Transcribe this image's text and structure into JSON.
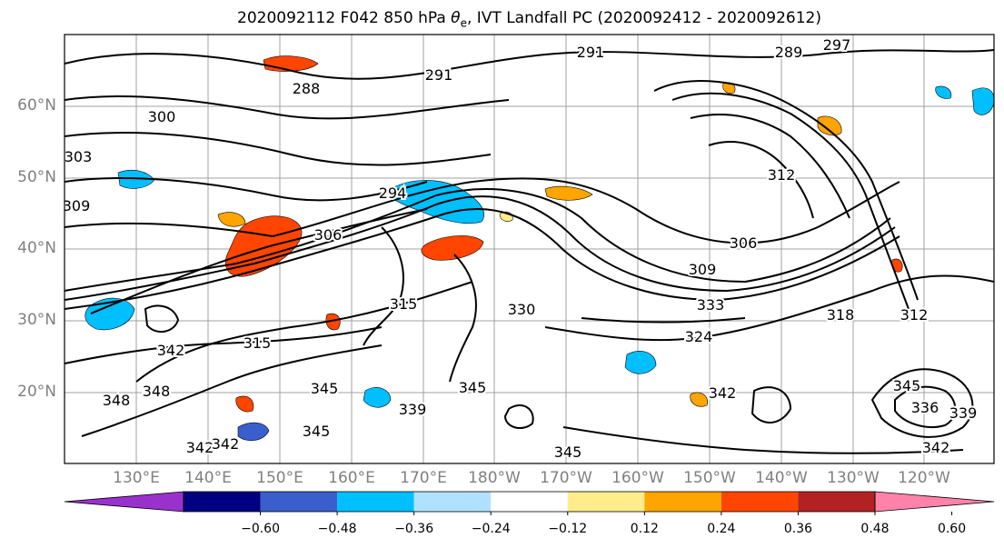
{
  "title": {
    "main": "2020092112 F042 850 hPa",
    "theta_symbol": "θ",
    "theta_sub": "e",
    "rest": ", IVT Landfall PC (2020092412 - 2020092612)"
  },
  "map": {
    "lat_labels": [
      "60°N",
      "50°N",
      "40°N",
      "30°N",
      "20°N"
    ],
    "lon_labels": [
      "130°E",
      "140°E",
      "150°E",
      "160°E",
      "170°E",
      "180°W",
      "170°W",
      "160°W",
      "150°W",
      "140°W",
      "130°W",
      "120°W"
    ],
    "contour_labels": [
      "300",
      "303",
      "309",
      "288",
      "291",
      "291",
      "289",
      "297",
      "294",
      "306",
      "312",
      "306",
      "309",
      "315",
      "330",
      "333",
      "324",
      "318",
      "312",
      "315",
      "342",
      "348",
      "345",
      "345",
      "339",
      "342",
      "336",
      "342",
      "345",
      "348",
      "342",
      "345",
      "339",
      "342",
      "345"
    ],
    "background_color": "#ffffff"
  },
  "colorbar": {
    "colors": [
      "#9932CC",
      "#000080",
      "#3A5FCD",
      "#00BFFF",
      "#B0E2FF",
      "#FFFFFF",
      "#FFEC8B",
      "#FFA500",
      "#FF4500",
      "#B22222",
      "#FF82AB"
    ],
    "tick_labels": [
      "−0.60",
      "−0.48",
      "−0.36",
      "−0.24",
      "−0.12",
      "0.12",
      "0.24",
      "0.36",
      "0.48",
      "0.60"
    ]
  }
}
